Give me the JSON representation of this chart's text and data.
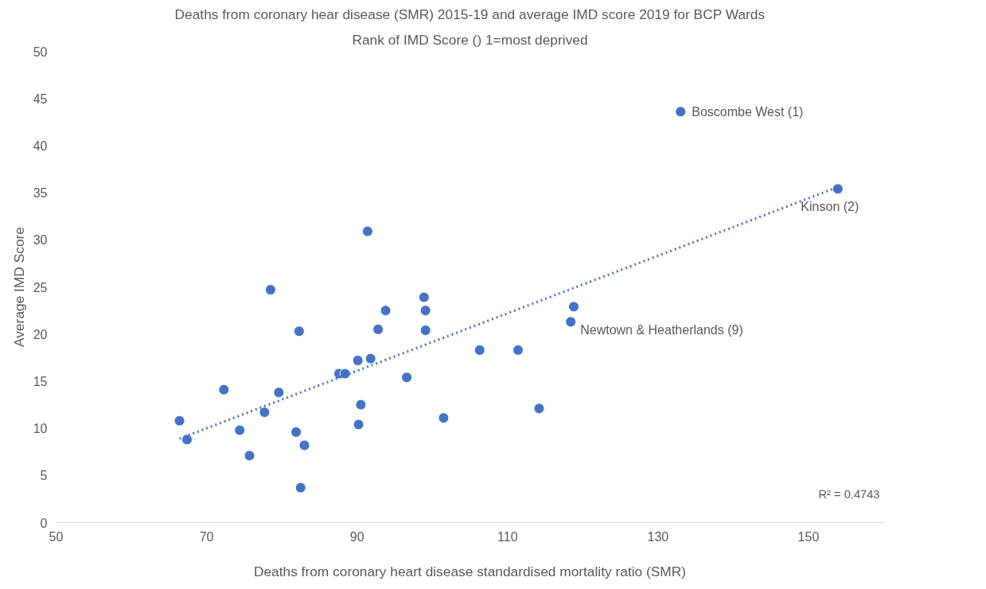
{
  "chart_data": {
    "type": "scatter",
    "title": "Deaths from coronary hear disease (SMR) 2015-19 and average IMD score 2019 for BCP Wards",
    "subtitle": "Rank of IMD Score () 1=most deprived",
    "xlabel": "Deaths from coronary heart disease standardised mortality ratio (SMR)",
    "ylabel": "Average IMD Score",
    "xlim": [
      50,
      160
    ],
    "xticks": [
      50,
      70,
      90,
      110,
      130,
      150
    ],
    "ylim": [
      0,
      50
    ],
    "yticks": [
      0,
      5,
      10,
      15,
      20,
      25,
      30,
      35,
      40,
      45,
      50
    ],
    "grid": false,
    "marker": "circle",
    "series": [
      {
        "color": "#4472c4",
        "x": [
          66.4,
          67.4,
          72.3,
          74.4,
          75.7,
          77.7,
          78.5,
          79.6,
          81.9,
          82.3,
          82.5,
          83.0,
          87.6,
          88.4,
          90.1,
          90.2,
          90.5,
          91.4,
          91.8,
          92.8,
          93.8,
          96.6,
          98.9,
          99.1,
          99.1,
          101.5,
          106.3,
          111.4,
          114.2,
          118.4,
          118.8,
          133.0,
          153.9
        ],
        "values": [
          10.8,
          8.8,
          14.1,
          9.8,
          7.1,
          11.7,
          24.7,
          13.8,
          9.6,
          20.3,
          3.7,
          8.2,
          15.8,
          15.8,
          17.2,
          10.4,
          12.5,
          30.9,
          17.4,
          20.5,
          22.5,
          15.4,
          23.9,
          22.5,
          20.4,
          11.1,
          18.3,
          18.3,
          12.1,
          21.3,
          22.9,
          43.6,
          35.4
        ]
      },
      {
        "type": "line",
        "color": "#4472c4",
        "line_style": "dotted",
        "marker": "none",
        "x": [
          66.4,
          153.9
        ],
        "values": [
          8.9,
          35.6
        ]
      }
    ],
    "annotations": [
      {
        "text": "Boscombe West (1)",
        "x": 133.0,
        "y": 43.6
      },
      {
        "text": "Kinson (2)",
        "x": 153.9,
        "y": 35.4
      },
      {
        "text": "Newtown & Heatherlands (9)",
        "x": 118.4,
        "y": 21.3
      },
      "R² = 0.4743"
    ]
  }
}
